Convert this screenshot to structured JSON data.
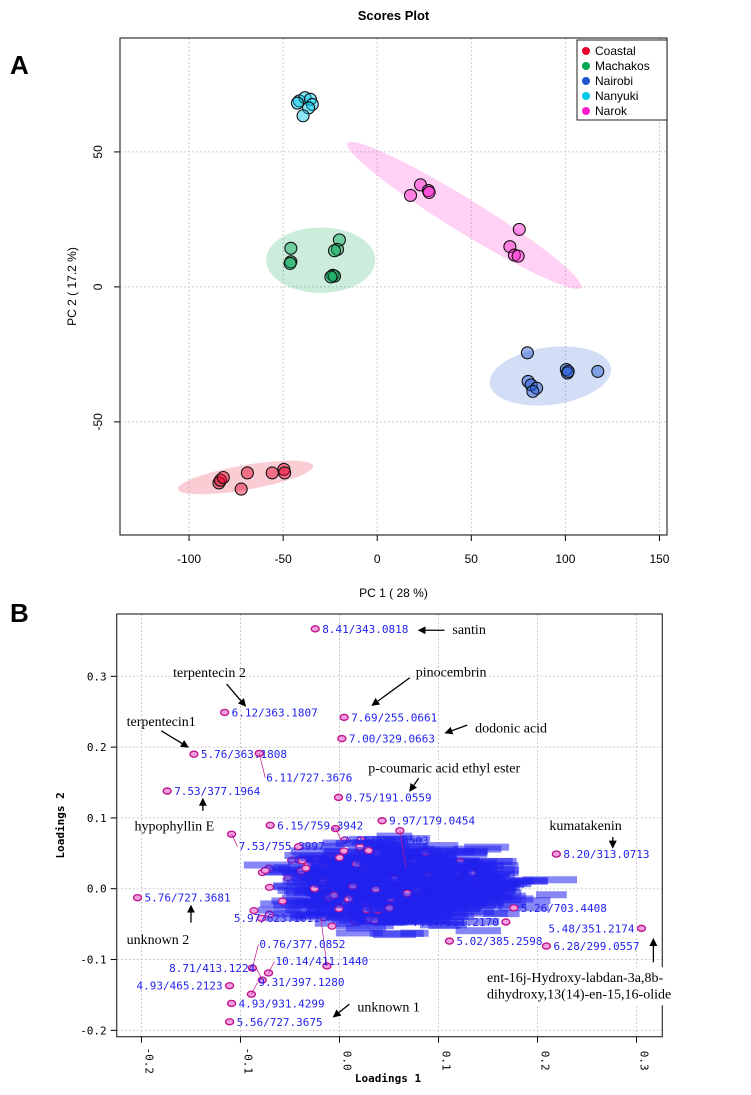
{
  "panels": {
    "a_label": "A",
    "b_label": "B"
  },
  "chart_data": [
    {
      "type": "scatter",
      "title": "Scores Plot",
      "xlabel": "PC 1 ( 28 %)",
      "ylabel": "PC 2 ( 17.2 %)",
      "xlim": [
        -136.7,
        154
      ],
      "ylim": [
        -91.9,
        92.2
      ],
      "xticks": [
        -100,
        -50,
        0,
        50,
        100,
        150
      ],
      "yticks": [
        -50,
        0,
        50
      ],
      "grid": true,
      "legend_position": "top-right",
      "series": [
        {
          "name": "Coastal",
          "color": "#e8002a",
          "points": [
            [
              -84.1,
              -72.6
            ],
            [
              -83.3,
              -71.6
            ],
            [
              -81.8,
              -70.6
            ],
            [
              -69,
              -68.9
            ],
            [
              -72.3,
              -74.9
            ],
            [
              -55.8,
              -68.9
            ],
            [
              -49.6,
              -67.6
            ],
            [
              -49.2,
              -68.9
            ]
          ],
          "ellipse": {
            "center": [
              -70,
              -70.6
            ],
            "half_major": [
              35.9,
              4.3
            ],
            "minor_ratio": 0.18
          }
        },
        {
          "name": "Machakos",
          "color": "#00a651",
          "points": [
            [
              -45.9,
              14.3
            ],
            [
              -45.9,
              9.3
            ],
            [
              -46.3,
              8.7
            ],
            [
              -20.1,
              17.4
            ],
            [
              -21.1,
              13.9
            ],
            [
              -22.7,
              13.4
            ],
            [
              -23.6,
              4.3
            ],
            [
              -22.7,
              4.0
            ],
            [
              -24.6,
              3.7
            ]
          ],
          "ellipse": {
            "center": [
              -30,
              9.9
            ],
            "half_major": [
              29,
              0
            ],
            "minor_ratio": 0.6
          }
        },
        {
          "name": "Nairobi",
          "color": "#1f55d0",
          "points": [
            [
              79.8,
              -24.4
            ],
            [
              80.2,
              -35
            ],
            [
              81.8,
              -36.3
            ],
            [
              84.7,
              -37.5
            ],
            [
              82.7,
              -38.7
            ],
            [
              100.5,
              -30.6
            ],
            [
              101.1,
              -31.9
            ],
            [
              101.5,
              -31.3
            ],
            [
              117.2,
              -31.3
            ]
          ],
          "ellipse": {
            "center": [
              92,
              -33
            ],
            "half_major": [
              32.2,
              3
            ],
            "minor_ratio": 0.47
          }
        },
        {
          "name": "Nanyuki",
          "color": "#00c8e8",
          "points": [
            [
              -41.4,
              68.9
            ],
            [
              -38.4,
              70.1
            ],
            [
              -35.5,
              69.5
            ],
            [
              -34.5,
              67.6
            ],
            [
              -36.5,
              66.3
            ],
            [
              -39.4,
              63.4
            ],
            [
              -42.4,
              68.1
            ]
          ],
          "ellipse": null
        },
        {
          "name": "Narok",
          "color": "#ff1acd",
          "points": [
            [
              17.7,
              33.9
            ],
            [
              23,
              37.8
            ],
            [
              27.2,
              35.7
            ],
            [
              27.6,
              35
            ],
            [
              75.5,
              21.3
            ],
            [
              70.5,
              14.9
            ],
            [
              72.9,
              11.8
            ],
            [
              74.9,
              11.4
            ]
          ],
          "ellipse": {
            "center": [
              46.3,
              26.5
            ],
            "half_major": [
              62.1,
              -26.7
            ],
            "minor_ratio": 0.12
          }
        }
      ]
    },
    {
      "type": "scatter",
      "title": "",
      "xlabel": "Loadings 1",
      "ylabel": "Loadings 2",
      "xlim": [
        -0.225,
        0.326
      ],
      "ylim": [
        -0.209,
        0.388
      ],
      "xticks": [
        "-0.2",
        "-0.1",
        "0.0",
        "0.1",
        "0.2",
        "0.3"
      ],
      "yticks": [
        "-0.2",
        "-0.1",
        "0.0",
        "0.1",
        "0.2",
        "0.3"
      ],
      "grid": true,
      "point_color": "#c0168e",
      "label_color": "#2222ee",
      "dense_cloud": {
        "count": 900,
        "center": [
          0.035,
          0.005
        ],
        "spread": [
          0.05,
          0.025
        ]
      },
      "labeled_points": [
        {
          "x": -0.0245,
          "y": 0.367,
          "label": "8.41/343.0818"
        },
        {
          "x": -0.116,
          "y": 0.249,
          "label": "6.12/363.1807"
        },
        {
          "x": 0.0047,
          "y": 0.242,
          "label": "7.69/255.0661"
        },
        {
          "x": 0.0024,
          "y": 0.212,
          "label": "7.00/329.0663"
        },
        {
          "x": -0.147,
          "y": 0.19,
          "label": "5.76/363.1808"
        },
        {
          "x": -0.081,
          "y": 0.191,
          "label": "6.11/727.3676"
        },
        {
          "x": -0.174,
          "y": 0.138,
          "label": "7.53/377.1964"
        },
        {
          "x": -0.001,
          "y": 0.129,
          "label": "0.75/191.0559"
        },
        {
          "x": -0.07,
          "y": 0.0895,
          "label": "6.15/759.3942"
        },
        {
          "x": -0.109,
          "y": 0.077,
          "label": "7.53/755.3997"
        },
        {
          "x": -0.004,
          "y": 0.085,
          "label": "7.01/327.0503"
        },
        {
          "x": 0.043,
          "y": 0.096,
          "label": "9.97/179.0454"
        },
        {
          "x": 0.061,
          "y": 0.082,
          "label": "5.28/337.0923"
        },
        {
          "x": 0.219,
          "y": 0.049,
          "label": "8.20/313.0713"
        },
        {
          "x": 0.305,
          "y": -0.056,
          "label": "5.48/351.2174"
        },
        {
          "x": 0.209,
          "y": -0.081,
          "label": "6.28/299.0557"
        },
        {
          "x": 0.111,
          "y": -0.074,
          "label": "5.02/385.2598"
        },
        {
          "x": 0.168,
          "y": -0.047,
          "label": "7.64/351.2170"
        },
        {
          "x": 0.176,
          "y": -0.027,
          "label": "5.26/703.4408"
        },
        {
          "x": -0.204,
          "y": -0.0127,
          "label": "5.76/727.3681"
        },
        {
          "x": -0.111,
          "y": -0.188,
          "label": "5.56/727.3675"
        },
        {
          "x": -0.109,
          "y": -0.162,
          "label": "4.93/931.4299"
        },
        {
          "x": -0.089,
          "y": -0.149,
          "label": "9.31/397.1280"
        },
        {
          "x": -0.111,
          "y": -0.137,
          "label": "4.93/465.2123"
        },
        {
          "x": -0.078,
          "y": -0.129,
          "label": "8.71/413.1224"
        },
        {
          "x": -0.0717,
          "y": -0.119,
          "label": "10.14/411.1440"
        },
        {
          "x": -0.088,
          "y": -0.112,
          "label": "0.76/377.0852"
        },
        {
          "x": -0.0127,
          "y": -0.109,
          "label": "5.97/623.1611"
        }
      ],
      "annotations": [
        {
          "text": "santin",
          "at": [
            0.114,
            0.367
          ],
          "arrow": [
            [
              0.106,
              0.365
            ],
            [
              0.08,
              0.365
            ]
          ]
        },
        {
          "text": "pinocembrin",
          "at": [
            0.077,
            0.307
          ],
          "arrow": [
            [
              0.071,
              0.298
            ],
            [
              0.033,
              0.259
            ]
          ]
        },
        {
          "text": "dodonic acid",
          "at": [
            0.137,
            0.228
          ],
          "arrow": [
            [
              0.129,
              0.231
            ],
            [
              0.107,
              0.22
            ]
          ]
        },
        {
          "text": "p-coumaric acid ethyl ester",
          "at": [
            0.029,
            0.171
          ],
          "arrow": [
            [
              0.08,
              0.156
            ],
            [
              0.071,
              0.138
            ]
          ]
        },
        {
          "text": "terpentecin 2",
          "at": [
            -0.168,
            0.306
          ],
          "arrow": [
            [
              -0.114,
              0.289
            ],
            [
              -0.095,
              0.258
            ]
          ]
        },
        {
          "text": "terpentecin1",
          "at": [
            -0.215,
            0.237
          ],
          "arrow": [
            [
              -0.18,
              0.223
            ],
            [
              -0.153,
              0.2
            ]
          ]
        },
        {
          "text": "hypophyllin E",
          "at": [
            -0.207,
            0.089
          ],
          "arrow": [
            [
              -0.138,
              0.11
            ],
            [
              -0.138,
              0.127
            ]
          ]
        },
        {
          "text": "kumatakenin",
          "at": [
            0.212,
            0.09
          ],
          "arrow": [
            [
              0.276,
              0.073
            ],
            [
              0.276,
              0.058
            ]
          ]
        },
        {
          "text": "unknown 2",
          "at": [
            -0.215,
            -0.071
          ],
          "arrow": [
            [
              -0.15,
              -0.048
            ],
            [
              -0.15,
              -0.024
            ]
          ]
        },
        {
          "text": "unknown 1",
          "at": [
            0.018,
            -0.166
          ],
          "arrow": [
            [
              0.01,
              -0.163
            ],
            [
              -0.006,
              -0.181
            ]
          ]
        },
        {
          "text": "ent-16j-Hydroxy-labdan-3a,8b-",
          "at": [
            0.149,
            -0.125
          ],
          "arrow": [
            [
              0.317,
              -0.104
            ],
            [
              0.317,
              -0.071
            ]
          ]
        },
        {
          "text": "dihydroxy,13(14)-en-15,16-olide",
          "at": [
            0.149,
            -0.148
          ],
          "arrow": null
        }
      ]
    }
  ]
}
